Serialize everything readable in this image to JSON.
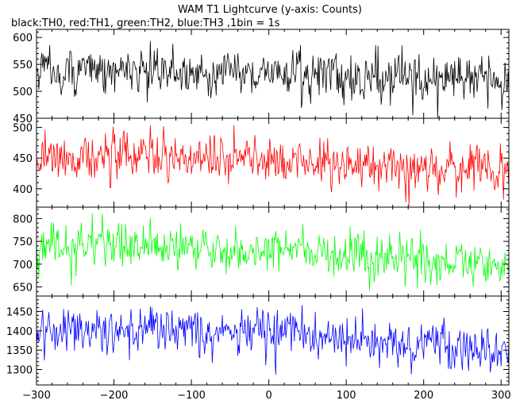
{
  "chart_data": {
    "type": "line",
    "title": "WAM T1 Lightcurve (y-axis: Counts)",
    "subtitle": "black:TH0, red:TH1, green:TH2, blue:TH3 ,1bin = 1s",
    "x_range": [
      -300,
      310
    ],
    "x_ticks": [
      -300,
      -200,
      -100,
      0,
      100,
      200,
      300
    ],
    "x_tick_labels": [
      "−300",
      "−200",
      "−100",
      "0",
      "100",
      "200",
      "300"
    ],
    "x_step": 1,
    "panels": [
      {
        "series": "TH0",
        "color": "#000000",
        "ylim": [
          450,
          615
        ],
        "y_ticks": [
          450,
          500,
          550,
          600
        ],
        "y_tick_labels": [
          "450",
          "500",
          "550",
          "600"
        ],
        "trend": [
          [
            -300,
            540
          ],
          [
            -200,
            537
          ],
          [
            -100,
            536
          ],
          [
            0,
            534
          ],
          [
            100,
            528
          ],
          [
            200,
            523
          ],
          [
            310,
            518
          ]
        ],
        "noise_sd": 25
      },
      {
        "series": "TH1",
        "color": "#ff0000",
        "ylim": [
          370,
          515
        ],
        "y_ticks": [
          400,
          450,
          500
        ],
        "y_tick_labels": [
          "400",
          "450",
          "500"
        ],
        "trend": [
          [
            -300,
            455
          ],
          [
            -200,
            452
          ],
          [
            -100,
            450
          ],
          [
            0,
            447
          ],
          [
            100,
            440
          ],
          [
            200,
            433
          ],
          [
            310,
            428
          ]
        ],
        "noise_sd": 22
      },
      {
        "series": "TH2",
        "color": "#00ff00",
        "ylim": [
          630,
          825
        ],
        "y_ticks": [
          650,
          700,
          750,
          800
        ],
        "y_tick_labels": [
          "650",
          "700",
          "750",
          "800"
        ],
        "trend": [
          [
            -300,
            745
          ],
          [
            -200,
            738
          ],
          [
            -100,
            735
          ],
          [
            0,
            732
          ],
          [
            100,
            720
          ],
          [
            200,
            708
          ],
          [
            310,
            700
          ]
        ],
        "noise_sd": 28
      },
      {
        "series": "TH3",
        "color": "#0000ff",
        "ylim": [
          1260,
          1490
        ],
        "y_ticks": [
          1300,
          1350,
          1400,
          1450
        ],
        "y_tick_labels": [
          "1300",
          "1350",
          "1400",
          "1450"
        ],
        "trend": [
          [
            -300,
            1410
          ],
          [
            -200,
            1402
          ],
          [
            -100,
            1398
          ],
          [
            0,
            1393
          ],
          [
            100,
            1378
          ],
          [
            200,
            1362
          ],
          [
            310,
            1348
          ]
        ],
        "noise_sd": 35
      }
    ],
    "grid": false
  }
}
